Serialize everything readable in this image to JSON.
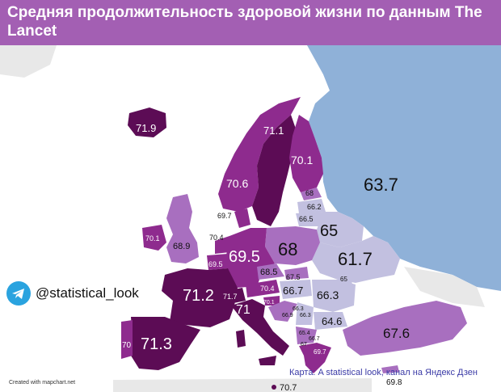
{
  "title": "Средняя продолжительность здоровой жизни по данным The Lancet",
  "social_handle": "@statistical_look",
  "credit_mapchart": "Created with mapchart.net",
  "credit_source": "Карта: A statistical look, канал на Яндекс Дзен",
  "colors": {
    "header": "#a35fb3",
    "very_high": "#5c0c55",
    "high": "#8e2b8e",
    "mid": "#a86fbf",
    "low": "#c2c0e0",
    "very_low": "#8fb1d8",
    "no_data": "#e8e8e8"
  },
  "countries": {
    "russia": "63.7",
    "iceland": "71.9",
    "sweden": "71.1",
    "finland": "70.1",
    "norway": "70.6",
    "estonia": "68",
    "latvia": "66.2",
    "lithuania": "66.5",
    "belarus": "65",
    "ireland": "70.1",
    "uk": "68.9",
    "denmark": "69.7",
    "netherlands": "70.4",
    "belgium": "69.5",
    "germany": "69.5",
    "poland": "68",
    "ukraine": "61.7",
    "czechia": "68.5",
    "slovakia": "67.5",
    "austria": "70.4",
    "slovenia": "70.1",
    "hungary": "66.7",
    "romania": "66.3",
    "moldova": "65",
    "switzerland": "71.7",
    "france": "71.2",
    "italy": "71",
    "spain": "71.3",
    "portugal": "70",
    "croatia": "66.9",
    "serbia": "66.3",
    "bosnia": "66.3",
    "montenegro": "65.4",
    "bulgaria": "64.6",
    "albania": "67",
    "north_macedonia": "66.7",
    "greece": "69.7",
    "turkey": "67.6",
    "cyprus": "69.8",
    "malta": "70.7"
  }
}
